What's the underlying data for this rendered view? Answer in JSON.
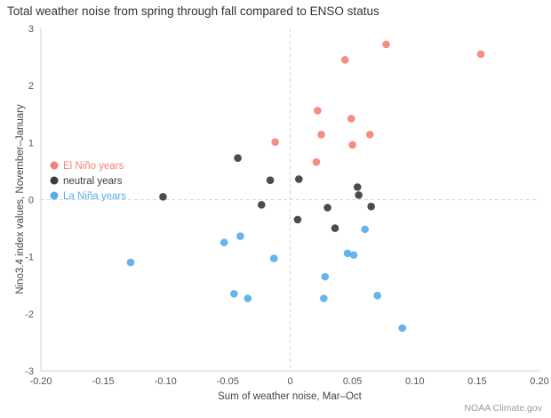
{
  "chart_data": {
    "type": "scatter",
    "title": "Total weather noise from spring through fall compared to ENSO status",
    "xlabel": "Sum of weather noise, Mar–Oct",
    "ylabel": "Nino3.4 index values, November–January",
    "attribution": "NOAA Climate.gov",
    "xlim": [
      -0.2,
      0.2
    ],
    "ylim": [
      -3,
      3
    ],
    "xticks": [
      -0.2,
      -0.15,
      -0.1,
      -0.05,
      0,
      0.05,
      0.1,
      0.15,
      0.2
    ],
    "xtick_labels": [
      "-0.20",
      "-0.15",
      "-0.10",
      "-0.05",
      "0",
      "0.05",
      "0.10",
      "0.15",
      "0.20"
    ],
    "yticks": [
      -3,
      -2,
      -1,
      0,
      1,
      2,
      3
    ],
    "ytick_labels": [
      "-3",
      "-2",
      "-1",
      "0",
      "1",
      "2",
      "3"
    ],
    "grid": "dashed reference lines at x=0 and y=0 only",
    "legend_position": "inside-left-middle",
    "series": [
      {
        "name": "El Niño years",
        "color": "#F58278",
        "points": [
          [
            -0.012,
            1.01
          ],
          [
            0.022,
            1.56
          ],
          [
            0.025,
            1.14
          ],
          [
            0.021,
            0.66
          ],
          [
            0.044,
            2.45
          ],
          [
            0.049,
            1.42
          ],
          [
            0.05,
            0.96
          ],
          [
            0.064,
            1.14
          ],
          [
            0.077,
            2.72
          ],
          [
            0.153,
            2.55
          ]
        ]
      },
      {
        "name": "neutral years",
        "color": "#3D3D3D",
        "points": [
          [
            -0.102,
            0.05
          ],
          [
            -0.042,
            0.73
          ],
          [
            -0.016,
            0.34
          ],
          [
            0.007,
            0.36
          ],
          [
            -0.023,
            -0.09
          ],
          [
            0.006,
            -0.35
          ],
          [
            0.03,
            -0.14
          ],
          [
            0.036,
            -0.5
          ],
          [
            0.054,
            0.22
          ],
          [
            0.055,
            0.08
          ],
          [
            0.065,
            -0.12
          ]
        ]
      },
      {
        "name": "La Niña years",
        "color": "#5AADE9",
        "points": [
          [
            -0.128,
            -1.1
          ],
          [
            -0.053,
            -0.75
          ],
          [
            -0.04,
            -0.64
          ],
          [
            -0.045,
            -1.65
          ],
          [
            -0.034,
            -1.73
          ],
          [
            -0.013,
            -1.03
          ],
          [
            0.028,
            -1.35
          ],
          [
            0.027,
            -1.73
          ],
          [
            0.046,
            -0.94
          ],
          [
            0.051,
            -0.97
          ],
          [
            0.06,
            -0.52
          ],
          [
            0.07,
            -1.68
          ],
          [
            0.09,
            -2.25
          ]
        ]
      }
    ]
  }
}
